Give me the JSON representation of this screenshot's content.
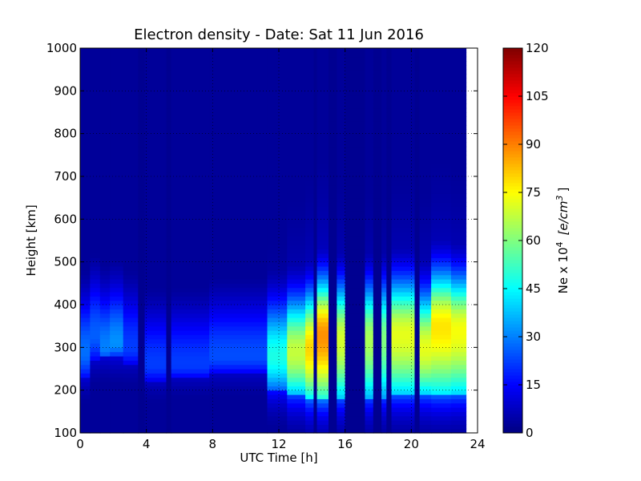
{
  "chart_data": {
    "type": "heatmap",
    "title": "Electron density - Date: Sat 11 Jun 2016",
    "xlabel": "UTC Time [h]",
    "ylabel": "Height [km]",
    "xlim": [
      0,
      24
    ],
    "ylim": [
      100,
      1000
    ],
    "x_ticks": [
      "0",
      "4",
      "8",
      "12",
      "16",
      "20",
      "24"
    ],
    "y_ticks": [
      "100",
      "200",
      "300",
      "400",
      "500",
      "600",
      "700",
      "800",
      "900",
      "1000"
    ],
    "data_end_hour": 23.3,
    "grid": true,
    "colorbar": {
      "label_text": "Ne x 10",
      "label_exponent": "4",
      "label_unit": "[e/cm",
      "label_unit_exponent": "3",
      "label_close": "]",
      "range": [
        0,
        120
      ],
      "ticks": [
        "0",
        "15",
        "30",
        "45",
        "60",
        "75",
        "90",
        "105",
        "120"
      ],
      "colormap": "jet"
    },
    "profile_columns": [
      {
        "start": 0.0,
        "end": 0.6,
        "bottom_height": 230,
        "peak_height": 290,
        "peak_value": 28
      },
      {
        "start": 0.6,
        "end": 1.2,
        "bottom_height": 270,
        "peak_height": 330,
        "peak_value": 26
      },
      {
        "start": 1.2,
        "end": 1.8,
        "bottom_height": 280,
        "peak_height": 300,
        "peak_value": 30
      },
      {
        "start": 1.8,
        "end": 2.6,
        "bottom_height": 280,
        "peak_height": 310,
        "peak_value": 32
      },
      {
        "start": 2.6,
        "end": 3.5,
        "bottom_height": 260,
        "peak_height": 300,
        "peak_value": 22
      },
      {
        "start": 3.5,
        "end": 3.9,
        "bottom_height": 0,
        "peak_height": 0,
        "peak_value": 2
      },
      {
        "start": 3.9,
        "end": 5.2,
        "bottom_height": 220,
        "peak_height": 260,
        "peak_value": 22
      },
      {
        "start": 5.2,
        "end": 5.5,
        "bottom_height": 0,
        "peak_height": 0,
        "peak_value": 2
      },
      {
        "start": 5.5,
        "end": 7.8,
        "bottom_height": 230,
        "peak_height": 260,
        "peak_value": 22
      },
      {
        "start": 7.8,
        "end": 11.3,
        "bottom_height": 240,
        "peak_height": 280,
        "peak_value": 24
      },
      {
        "start": 11.3,
        "end": 12.5,
        "bottom_height": 200,
        "peak_height": 280,
        "peak_value": 48
      },
      {
        "start": 12.5,
        "end": 13.6,
        "bottom_height": 190,
        "peak_height": 290,
        "peak_value": 68
      },
      {
        "start": 13.6,
        "end": 14.1,
        "bottom_height": 180,
        "peak_height": 300,
        "peak_value": 80
      },
      {
        "start": 14.1,
        "end": 14.3,
        "bottom_height": 0,
        "peak_height": 0,
        "peak_value": 2
      },
      {
        "start": 14.3,
        "end": 15.0,
        "bottom_height": 180,
        "peak_height": 330,
        "peak_value": 88
      },
      {
        "start": 15.0,
        "end": 15.5,
        "bottom_height": 0,
        "peak_height": 0,
        "peak_value": 2
      },
      {
        "start": 15.5,
        "end": 16.0,
        "bottom_height": 180,
        "peak_height": 320,
        "peak_value": 70
      },
      {
        "start": 16.0,
        "end": 17.2,
        "bottom_height": 0,
        "peak_height": 0,
        "peak_value": 2
      },
      {
        "start": 17.2,
        "end": 17.7,
        "bottom_height": 180,
        "peak_height": 320,
        "peak_value": 65
      },
      {
        "start": 17.7,
        "end": 18.2,
        "bottom_height": 0,
        "peak_height": 0,
        "peak_value": 2
      },
      {
        "start": 18.2,
        "end": 18.5,
        "bottom_height": 180,
        "peak_height": 320,
        "peak_value": 60
      },
      {
        "start": 18.5,
        "end": 18.8,
        "bottom_height": 0,
        "peak_height": 0,
        "peak_value": 2
      },
      {
        "start": 18.8,
        "end": 20.2,
        "bottom_height": 190,
        "peak_height": 330,
        "peak_value": 72
      },
      {
        "start": 20.2,
        "end": 20.5,
        "bottom_height": 0,
        "peak_height": 0,
        "peak_value": 2
      },
      {
        "start": 20.5,
        "end": 21.2,
        "bottom_height": 190,
        "peak_height": 300,
        "peak_value": 72
      },
      {
        "start": 21.2,
        "end": 22.4,
        "bottom_height": 190,
        "peak_height": 350,
        "peak_value": 78
      },
      {
        "start": 22.4,
        "end": 23.3,
        "bottom_height": 190,
        "peak_height": 340,
        "peak_value": 74
      }
    ]
  }
}
